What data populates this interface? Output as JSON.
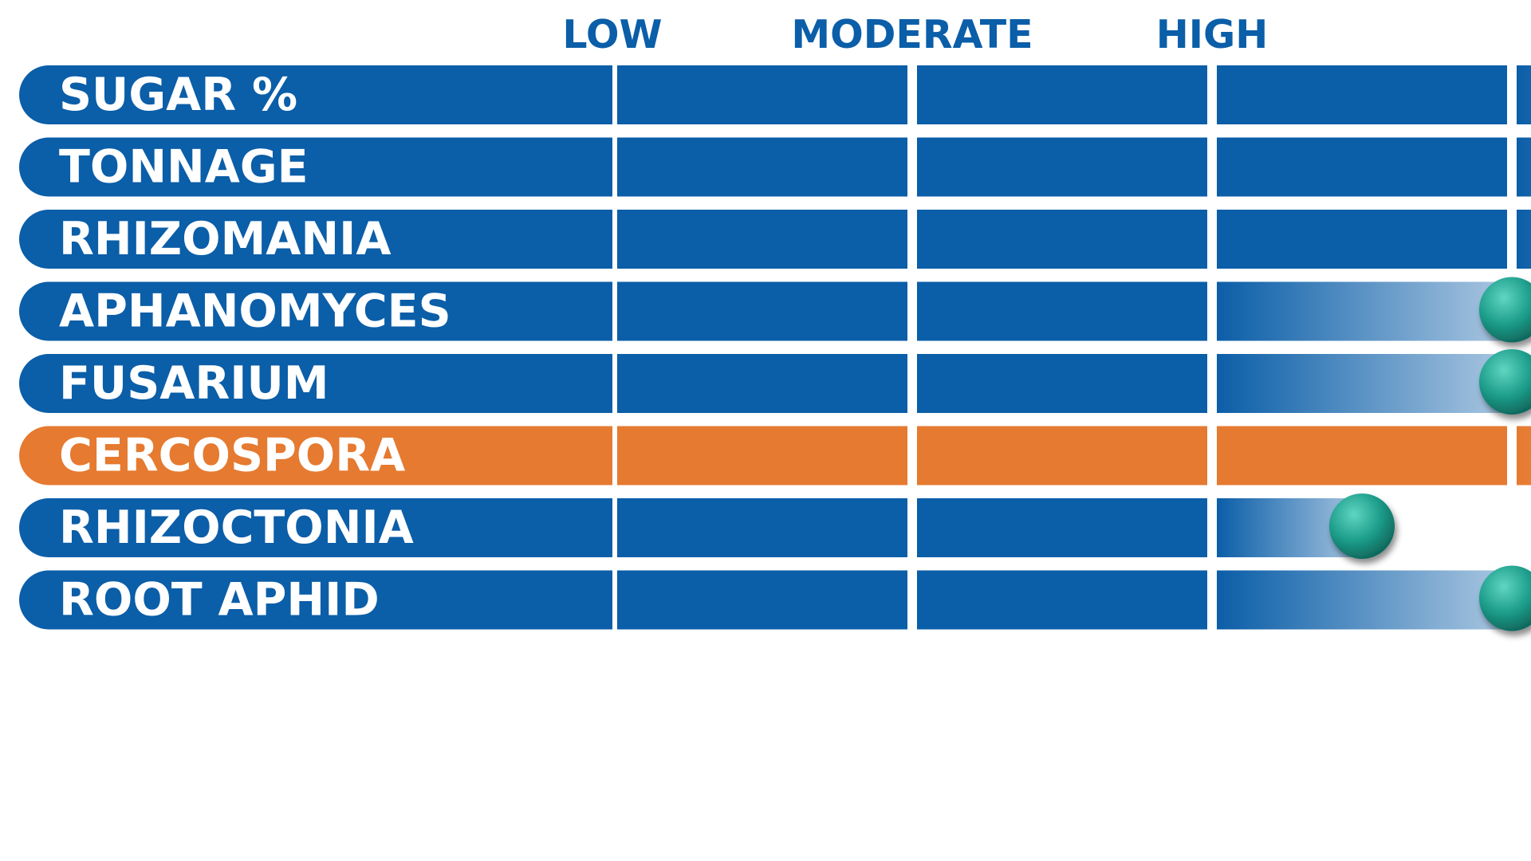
{
  "chart_data": {
    "type": "bar",
    "orientation": "horizontal",
    "level_labels": [
      "LOW",
      "MODERATE",
      "HIGH"
    ],
    "categories": [
      "SUGAR %",
      "TONNAGE",
      "RHIZOMANIA",
      "APHANOMYCES",
      "FUSARIUM",
      "CERCOSPORA",
      "RHIZOCTONIA",
      "ROOT APHID"
    ],
    "values": [
      4,
      4,
      4,
      3,
      3,
      4,
      2.5,
      3
    ],
    "highlight": "CERCOSPORA",
    "xlim": [
      0,
      4
    ],
    "grid": false,
    "legend": "none",
    "colors": {
      "bar": "#0b5ea8",
      "highlight_bar": "#e57a30",
      "marker": "#1c9c8a",
      "header_text": "#0b5ea8",
      "label_text": "#ffffff"
    }
  }
}
